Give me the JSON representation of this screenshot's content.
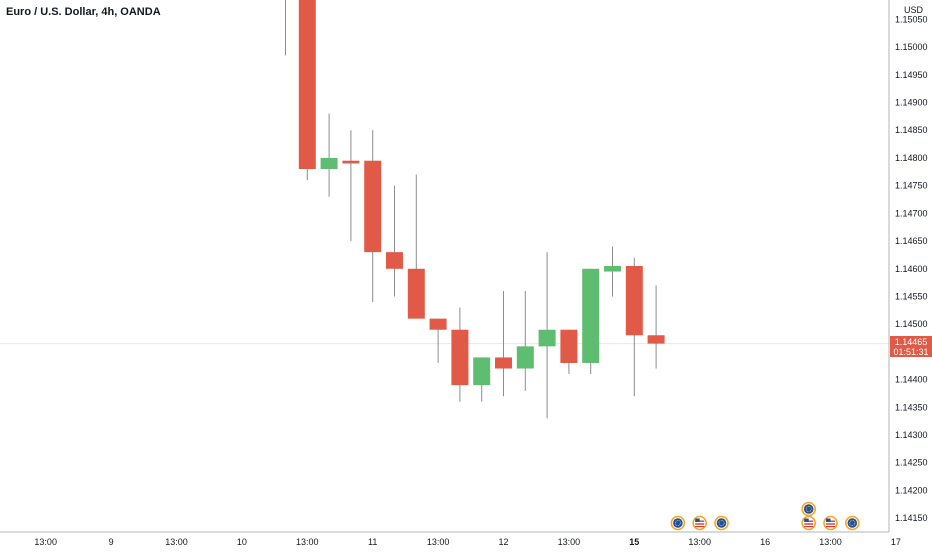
{
  "chart_data": {
    "type": "candlestick",
    "title": "Euro / U.S. Dollar, 4h, OANDA",
    "currency_label": "USD",
    "ylim": [
      1.14125,
      1.15085
    ],
    "y_ticks": [
      1.1505,
      1.15,
      1.1495,
      1.149,
      1.1485,
      1.148,
      1.1475,
      1.147,
      1.1465,
      1.146,
      1.1455,
      1.145,
      1.1445,
      1.144,
      1.1435,
      1.143,
      1.1425,
      1.142,
      1.1415
    ],
    "y_tick_labels": [
      "1.15050",
      "1.15000",
      "1.14950",
      "1.14900",
      "1.14850",
      "1.14800",
      "1.14750",
      "1.14700",
      "1.14650",
      "1.14600",
      "1.14550",
      "1.14500",
      "1.14450",
      "1.14400",
      "1.14350",
      "1.14300",
      "1.14250",
      "1.14200",
      "1.14150"
    ],
    "x_labels": [
      {
        "text": "13:00",
        "slot": -11,
        "bold": false
      },
      {
        "text": "9",
        "slot": -8,
        "bold": false
      },
      {
        "text": "13:00",
        "slot": -5,
        "bold": false
      },
      {
        "text": "10",
        "slot": -2,
        "bold": false
      },
      {
        "text": "13:00",
        "slot": 1,
        "bold": false
      },
      {
        "text": "11",
        "slot": 4,
        "bold": false
      },
      {
        "text": "13:00",
        "slot": 7,
        "bold": false
      },
      {
        "text": "12",
        "slot": 10,
        "bold": false
      },
      {
        "text": "13:00",
        "slot": 13,
        "bold": false
      },
      {
        "text": "15",
        "slot": 16,
        "bold": true
      },
      {
        "text": "13:00",
        "slot": 19,
        "bold": false
      },
      {
        "text": "16",
        "slot": 22,
        "bold": false
      },
      {
        "text": "13:00",
        "slot": 25,
        "bold": false
      },
      {
        "text": "17",
        "slot": 28,
        "bold": false
      }
    ],
    "candles": [
      {
        "slot": 0,
        "open": 1.1525,
        "high": 1.1535,
        "low": 1.14985,
        "close": 1.1522
      },
      {
        "slot": 1,
        "open": 1.1522,
        "high": 1.1525,
        "low": 1.1476,
        "close": 1.1478
      },
      {
        "slot": 2,
        "open": 1.1478,
        "high": 1.1488,
        "low": 1.1473,
        "close": 1.148
      },
      {
        "slot": 3,
        "open": 1.14795,
        "high": 1.1485,
        "low": 1.1465,
        "close": 1.1479
      },
      {
        "slot": 4,
        "open": 1.14795,
        "high": 1.1485,
        "low": 1.1454,
        "close": 1.1463
      },
      {
        "slot": 5,
        "open": 1.1463,
        "high": 1.1475,
        "low": 1.1455,
        "close": 1.146
      },
      {
        "slot": 6,
        "open": 1.146,
        "high": 1.1477,
        "low": 1.1451,
        "close": 1.1451
      },
      {
        "slot": 7,
        "open": 1.1451,
        "high": 1.1451,
        "low": 1.1443,
        "close": 1.1449
      },
      {
        "slot": 8,
        "open": 1.1449,
        "high": 1.1453,
        "low": 1.1436,
        "close": 1.1439
      },
      {
        "slot": 9,
        "open": 1.1439,
        "high": 1.1444,
        "low": 1.1436,
        "close": 1.1444
      },
      {
        "slot": 10,
        "open": 1.1444,
        "high": 1.1456,
        "low": 1.1437,
        "close": 1.1442
      },
      {
        "slot": 11,
        "open": 1.1442,
        "high": 1.1456,
        "low": 1.1438,
        "close": 1.1446
      },
      {
        "slot": 12,
        "open": 1.1446,
        "high": 1.1463,
        "low": 1.1433,
        "close": 1.1449
      },
      {
        "slot": 13,
        "open": 1.1449,
        "high": 1.1449,
        "low": 1.1441,
        "close": 1.1443
      },
      {
        "slot": 14,
        "open": 1.1443,
        "high": 1.146,
        "low": 1.1441,
        "close": 1.146
      },
      {
        "slot": 15,
        "open": 1.14595,
        "high": 1.1464,
        "low": 1.1455,
        "close": 1.14605
      },
      {
        "slot": 16,
        "open": 1.14605,
        "high": 1.1462,
        "low": 1.1437,
        "close": 1.1448
      },
      {
        "slot": 17,
        "open": 1.1448,
        "high": 1.1457,
        "low": 1.1442,
        "close": 1.14465
      }
    ],
    "last_price": 1.14465,
    "last_price_label": "1.14465",
    "countdown_label": "01:51:31",
    "events": [
      {
        "slot": 18,
        "row": 0,
        "flag": "EU"
      },
      {
        "slot": 19,
        "row": 0,
        "flag": "US"
      },
      {
        "slot": 20,
        "row": 0,
        "flag": "EU"
      },
      {
        "slot": 24,
        "row": 0,
        "flag": "US"
      },
      {
        "slot": 24,
        "row": 1,
        "flag": "EU"
      },
      {
        "slot": 25,
        "row": 0,
        "flag": "US"
      },
      {
        "slot": 26,
        "row": 0,
        "flag": "EU"
      }
    ],
    "colors": {
      "up": "#5fbd72",
      "down": "#e05a47",
      "wick": "#8a8d93",
      "axis_text": "#131722",
      "axis_line": "#b2b5be",
      "price_badge": "#e05a47",
      "price_line": "#e8e8e8",
      "event_ring": "#f5a623",
      "event_eu": "#1f4fa0",
      "event_us": "#d23a3a"
    }
  }
}
